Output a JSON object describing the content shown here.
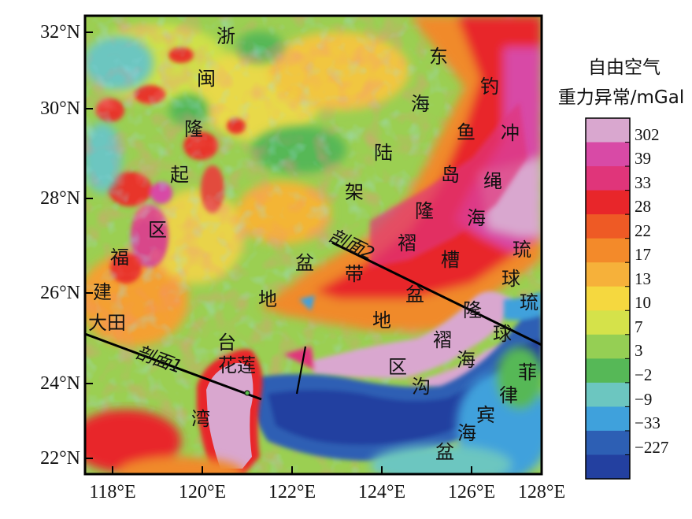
{
  "legend": {
    "title_line1": "自由空气",
    "title_line2": "重力异常/mGal",
    "ticks": [
      "302",
      "39",
      "33",
      "28",
      "22",
      "17",
      "13",
      "10",
      "7",
      "3",
      "−2",
      "−9",
      "−33",
      "−227"
    ],
    "colors": [
      "#d9a7cf",
      "#d84aa6",
      "#e0357a",
      "#e8262a",
      "#ee5a25",
      "#f38a2a",
      "#f6b13a",
      "#f5d83f",
      "#d5e24a",
      "#95cf54",
      "#56b857",
      "#6cc6c0",
      "#3fa1dc",
      "#2d5fb4",
      "#2340a0"
    ]
  },
  "axes": {
    "lat_labels": [
      "32°N",
      "30°N",
      "28°N",
      "26°N",
      "24°N",
      "22°N"
    ],
    "lon_labels": [
      "118°E",
      "120°E",
      "122°E",
      "124°E",
      "126°E",
      "128°E"
    ]
  },
  "profiles": [
    {
      "label": "剖面1"
    },
    {
      "label": "剖面2"
    }
  ],
  "places": [
    {
      "name": "place-zhe",
      "text": "浙"
    },
    {
      "name": "place-min",
      "text": "闽"
    },
    {
      "name": "place-long",
      "text": "隆"
    },
    {
      "name": "place-qi",
      "text": "起"
    },
    {
      "name": "place-qu",
      "text": "区"
    },
    {
      "name": "place-fu",
      "text": "福"
    },
    {
      "name": "place-jian",
      "text": "建"
    },
    {
      "name": "place-datian",
      "text": "大田"
    },
    {
      "name": "place-dong",
      "text": "东"
    },
    {
      "name": "place-hai1",
      "text": "海"
    },
    {
      "name": "place-lu",
      "text": "陆"
    },
    {
      "name": "place-jia",
      "text": "架"
    },
    {
      "name": "place-pen1",
      "text": "盆"
    },
    {
      "name": "place-di1",
      "text": "地"
    },
    {
      "name": "place-dai",
      "text": "带"
    },
    {
      "name": "place-diao",
      "text": "钓"
    },
    {
      "name": "place-yu",
      "text": "鱼"
    },
    {
      "name": "place-dao",
      "text": "岛"
    },
    {
      "name": "place-long2",
      "text": "隆"
    },
    {
      "name": "place-he1",
      "text": "褶"
    },
    {
      "name": "place-chong",
      "text": "冲"
    },
    {
      "name": "place-sheng",
      "text": "绳"
    },
    {
      "name": "place-hai2",
      "text": "海"
    },
    {
      "name": "place-cao",
      "text": "槽"
    },
    {
      "name": "place-pen2",
      "text": "盆"
    },
    {
      "name": "place-di2",
      "text": "地"
    },
    {
      "name": "place-long3",
      "text": "隆"
    },
    {
      "name": "place-he2",
      "text": "褶"
    },
    {
      "name": "place-qu2",
      "text": "区"
    },
    {
      "name": "place-liu1",
      "text": "琉"
    },
    {
      "name": "place-qiu1",
      "text": "球"
    },
    {
      "name": "place-liu2",
      "text": "琉"
    },
    {
      "name": "place-qiu2",
      "text": "球"
    },
    {
      "name": "place-hai3",
      "text": "海"
    },
    {
      "name": "place-gou",
      "text": "沟"
    },
    {
      "name": "place-tai",
      "text": "台"
    },
    {
      "name": "place-hualian",
      "text": "花莲"
    },
    {
      "name": "place-wan",
      "text": "湾"
    },
    {
      "name": "place-fei",
      "text": "菲"
    },
    {
      "name": "place-lv",
      "text": "律"
    },
    {
      "name": "place-bin",
      "text": "宾"
    },
    {
      "name": "place-hai4",
      "text": "海"
    },
    {
      "name": "place-pen3",
      "text": "盆"
    }
  ]
}
